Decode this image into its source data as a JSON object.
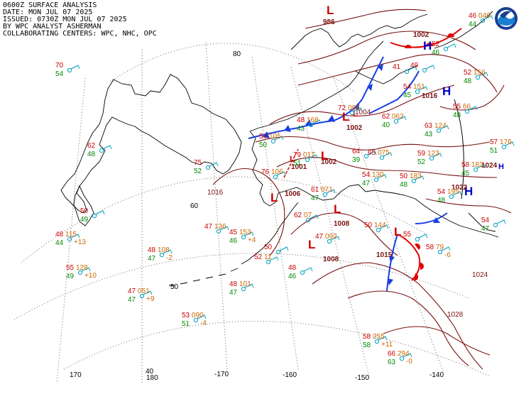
{
  "header": {
    "title": "0600Z SURFACE ANALYSIS",
    "date": "DATE: MON JUL 07 2025",
    "issued": "ISSUED: 0730Z MON JUL 07 2025",
    "analyst": "BY WPC ANALYST ASHERMAN",
    "centers": "COLLABORATING CENTERS: WPC, NHC, OPC"
  },
  "logo": {
    "name": "noaa-logo",
    "text": "NOAA"
  },
  "colors": {
    "temp": "#cc0000",
    "dew": "#008800",
    "pressure": "#cc6600",
    "isobar": "#7a1010",
    "station": "#00a0c0",
    "high": "#0000cc",
    "low": "#cc0000",
    "coast": "#000000"
  },
  "grid_labels": {
    "lat": [
      "80",
      "60",
      "50",
      "40"
    ],
    "lon": [
      "170",
      "180",
      "-170",
      "-160",
      "-150",
      "-140"
    ]
  },
  "pressure_centers": [
    {
      "type": "L",
      "value": "986"
    },
    {
      "type": "L",
      "value": "1002"
    },
    {
      "type": "L",
      "value": "1002"
    },
    {
      "type": "L",
      "value": "1004"
    },
    {
      "type": "L",
      "value": "1001"
    },
    {
      "type": "L",
      "value": "1006"
    },
    {
      "type": "L",
      "value": "1008"
    },
    {
      "type": "L",
      "value": "1008"
    },
    {
      "type": "L",
      "value": "1015"
    },
    {
      "type": "H",
      "value": "1002"
    },
    {
      "type": "H",
      "value": "1016"
    },
    {
      "type": "H",
      "value": "1022"
    },
    {
      "type": "H",
      "value": "1024"
    }
  ],
  "isobar_labels": [
    "1016",
    "1024",
    "1028"
  ],
  "stations": [
    {
      "t": "70",
      "td": "54"
    },
    {
      "t": "62",
      "td": "48"
    },
    {
      "t": "50",
      "td": "49"
    },
    {
      "t": "48",
      "p": "115",
      "td": "44",
      "tend": "+13"
    },
    {
      "t": "55",
      "p": "128",
      "td": "49",
      "tend": "+10"
    },
    {
      "t": "48",
      "p": "108",
      "td": "47",
      "tend": "-2"
    },
    {
      "t": "47",
      "p": "051",
      "td": "47",
      "tend": "+9"
    },
    {
      "t": "53",
      "p": "090",
      "td": "51",
      "tend": "-4"
    },
    {
      "t": "48",
      "p": "101",
      "td": "47"
    },
    {
      "t": "45",
      "p": "153",
      "td": "46",
      "tend": "+4"
    },
    {
      "t": "47",
      "p": "136"
    },
    {
      "t": "75",
      "td": "52"
    },
    {
      "t": "52",
      "p": "11"
    },
    {
      "t": "50"
    },
    {
      "t": "48",
      "td": "46"
    },
    {
      "t": "62",
      "p": "07"
    },
    {
      "t": "61",
      "p": "071",
      "td": "47"
    },
    {
      "t": "47",
      "p": "092"
    },
    {
      "t": "58",
      "p": "255",
      "td": "58",
      "tend": "+11"
    },
    {
      "t": "66",
      "p": "294",
      "td": "63",
      "tend": "-0"
    },
    {
      "t": "50",
      "p": "144"
    },
    {
      "t": "54",
      "p": "130",
      "td": "47"
    },
    {
      "t": "79",
      "p": "017",
      "td": "51"
    },
    {
      "t": "76",
      "p": "106"
    },
    {
      "t": "54",
      "p": "105",
      "td": "50"
    },
    {
      "t": "48",
      "p": "168",
      "td": "43"
    },
    {
      "t": "72",
      "p": "098"
    },
    {
      "t": "62",
      "p": "062",
      "td": "40"
    },
    {
      "t": "64",
      "td": "39"
    },
    {
      "t": "65",
      "p": "075"
    },
    {
      "t": "59",
      "p": "123",
      "td": "52"
    },
    {
      "t": "63",
      "p": "124",
      "td": "43"
    },
    {
      "t": "54",
      "p": "151",
      "td": "45"
    },
    {
      "t": "55",
      "p": "66",
      "td": "48"
    },
    {
      "t": "52",
      "p": "156",
      "td": "48"
    },
    {
      "t": "57",
      "p": "176",
      "td": "51"
    },
    {
      "t": "58",
      "p": "183",
      "td": "45"
    },
    {
      "t": "54",
      "p": "195",
      "td": "48"
    },
    {
      "t": "50",
      "p": "183",
      "td": "48"
    },
    {
      "t": "54",
      "td": "47"
    },
    {
      "t": "46",
      "p": "046",
      "td": "44"
    },
    {
      "t": "41"
    },
    {
      "t": "52",
      "td": "46"
    },
    {
      "t": "49"
    },
    {
      "t": "58",
      "p": "79",
      "tend": "-6"
    },
    {
      "t": "55"
    }
  ]
}
